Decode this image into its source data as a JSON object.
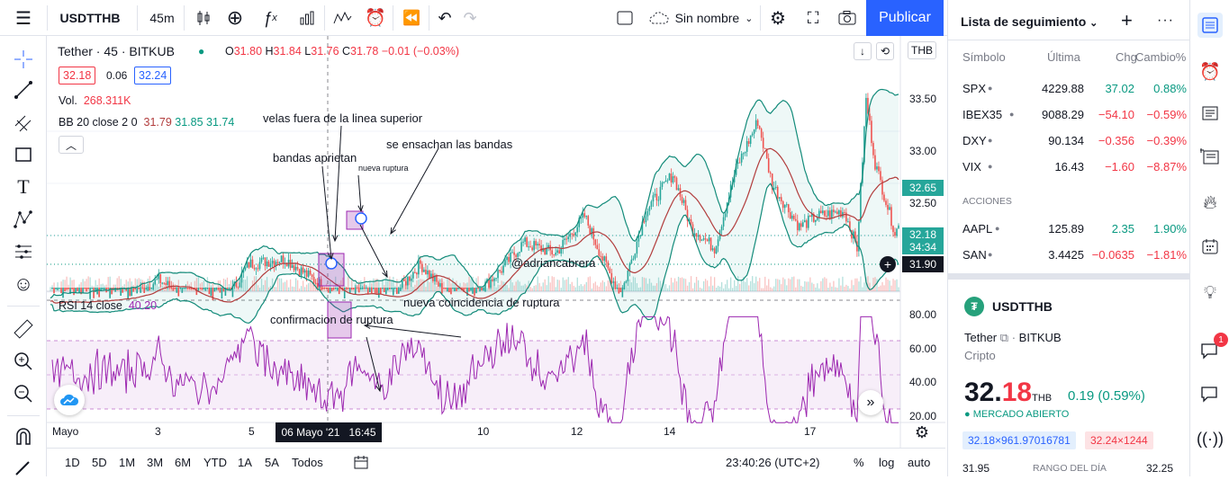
{
  "toolbar": {
    "symbol": "USDTTHB",
    "interval": "45m",
    "layout_name": "Sin nombre",
    "publish_label": "Publicar"
  },
  "legend": {
    "title": "Tether · 45 · BITKUB",
    "ohlc_o_label": "O",
    "ohlc_o": "31.80",
    "ohlc_h_label": "H",
    "ohlc_h": "31.84",
    "ohlc_l_label": "L",
    "ohlc_l": "31.76",
    "ohlc_c_label": "C",
    "ohlc_c": "31.78",
    "change": "−0.01 (−0.03%)",
    "bid": "32.18",
    "spread": "0.06",
    "ask": "32.24",
    "vol_label": "Vol.",
    "vol_value": "268.311K",
    "bb_label": "BB 20 close 2 0",
    "bb_mid": "31.79",
    "bb_up": "31.85",
    "bb_low": "31.74",
    "rsi_label": "RSI 14 close",
    "rsi_value": "40.20",
    "currency": "THB"
  },
  "annotations": {
    "a1": "velas fuera de la linea superior",
    "a2": "bandas aprietan",
    "a3": "se ensachan las bandas",
    "a4": "nueva ruptura",
    "a5": "@adriancabrera",
    "a6": "nueva coincidencia de ruptura",
    "a7": "confirmacion de ruptura"
  },
  "price_axis": [
    "33.50",
    "33.00",
    "32.50"
  ],
  "price_tags": {
    "t1": "32.65",
    "t2": "32.18",
    "t2_timer": "34:34",
    "t3": "31.90"
  },
  "rsi_axis": [
    "80.00",
    "60.00",
    "40.00",
    "20.00"
  ],
  "time_axis": [
    "Mayo",
    "3",
    "5",
    "10",
    "12",
    "14",
    "17"
  ],
  "crosshair_date": "06 Mayo '21   16:45",
  "bottom": {
    "ranges": [
      "1D",
      "5D",
      "1M",
      "3M",
      "6M",
      "YTD",
      "1A",
      "5A",
      "Todos"
    ],
    "clock": "23:40:26 (UTC+2)",
    "percent": "%",
    "log": "log",
    "auto": "auto"
  },
  "watchlist": {
    "title": "Lista de seguimiento",
    "col_symbol": "Símbolo",
    "col_last": "Última",
    "col_chg": "Chg",
    "col_chgpct": "Cambio%",
    "section_label": "ACCIONES",
    "rows": [
      {
        "symbol": "SPX",
        "last": "4229.88",
        "chg": "37.02",
        "pct": "0.88%",
        "dir": "up"
      },
      {
        "symbol": "IBEX35",
        "last": "9088.29",
        "chg": "−54.10",
        "pct": "−0.59%",
        "dir": "down"
      },
      {
        "symbol": "DXY",
        "last": "90.134",
        "chg": "−0.356",
        "pct": "−0.39%",
        "dir": "down"
      },
      {
        "symbol": "VIX",
        "last": "16.43",
        "chg": "−1.60",
        "pct": "−8.87%",
        "dir": "down"
      }
    ],
    "stock_rows": [
      {
        "symbol": "AAPL",
        "last": "125.89",
        "chg": "2.35",
        "pct": "1.90%",
        "dir": "up"
      },
      {
        "symbol": "SAN",
        "last": "3.4425",
        "chg": "−0.0635",
        "pct": "−1.81%",
        "dir": "down"
      }
    ]
  },
  "details": {
    "symbol": "USDTTHB",
    "name": "Tether",
    "exchange": "BITKUB",
    "type": "Cripto",
    "price_main": "32.",
    "price_frac": "18",
    "currency": "THB",
    "change": "0.19 (0.59%)",
    "market_status": "MERCADO ABIERTO",
    "bid_box": "32.18×961.97016781",
    "ask_box": "32.24×1244",
    "range_low": "31.95",
    "range_label": "RANGO DEL DÍA",
    "range_high": "32.25",
    "notification_count": "1"
  },
  "colors": {
    "up": "#26a69a",
    "down": "#ef5350",
    "bb": "#138b7a",
    "basis": "#b23d3d",
    "rsi": "#9c27b0",
    "accent": "#2962ff"
  }
}
